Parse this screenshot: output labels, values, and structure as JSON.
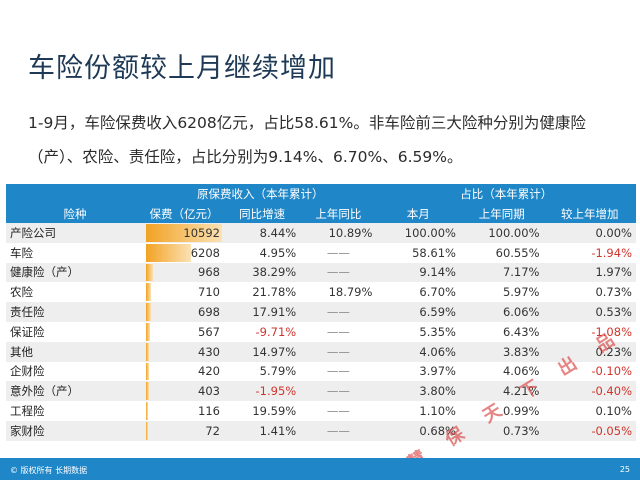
{
  "title": "车险份额较上月继续增加",
  "paragraph": "1-9月，车险保费收入6208亿元，占比58.61%。非车险前三大险种分别为健康险（产）、农险、责任险，占比分别为9.14%、6.70%、6.59%。",
  "table": {
    "group_headers": {
      "premium": "原保费收入（本年累计）",
      "share": "占比（本年累计）"
    },
    "columns": [
      "险种",
      "保费（亿元）",
      "同比增速",
      "上年同比",
      "本月",
      "上年同期",
      "较上年增加"
    ],
    "rows": [
      {
        "name": "产险公司",
        "premium": "10592",
        "premium_value": 10592,
        "yoy": "8.44%",
        "yoy_red": false,
        "prev_yoy": "10.89%",
        "month": "100.00%",
        "prev_period": "100.00%",
        "change": "0.00%",
        "change_red": false
      },
      {
        "name": "车险",
        "premium": "6208",
        "premium_value": 6208,
        "yoy": "4.95%",
        "yoy_red": false,
        "prev_yoy": "——",
        "month": "58.61%",
        "prev_period": "60.55%",
        "change": "-1.94%",
        "change_red": true
      },
      {
        "name": "健康险（产）",
        "premium": "968",
        "premium_value": 968,
        "yoy": "38.29%",
        "yoy_red": false,
        "prev_yoy": "——",
        "month": "9.14%",
        "prev_period": "7.17%",
        "change": "1.97%",
        "change_red": false
      },
      {
        "name": "农险",
        "premium": "710",
        "premium_value": 710,
        "yoy": "21.78%",
        "yoy_red": false,
        "prev_yoy": "18.79%",
        "month": "6.70%",
        "prev_period": "5.97%",
        "change": "0.73%",
        "change_red": false
      },
      {
        "name": "责任险",
        "premium": "698",
        "premium_value": 698,
        "yoy": "17.91%",
        "yoy_red": false,
        "prev_yoy": "——",
        "month": "6.59%",
        "prev_period": "6.06%",
        "change": "0.53%",
        "change_red": false
      },
      {
        "name": "保证险",
        "premium": "567",
        "premium_value": 567,
        "yoy": "-9.71%",
        "yoy_red": true,
        "prev_yoy": "——",
        "month": "5.35%",
        "prev_period": "6.43%",
        "change": "-1.08%",
        "change_red": true
      },
      {
        "name": "其他",
        "premium": "430",
        "premium_value": 430,
        "yoy": "14.97%",
        "yoy_red": false,
        "prev_yoy": "——",
        "month": "4.06%",
        "prev_period": "3.83%",
        "change": "0.23%",
        "change_red": false
      },
      {
        "name": "企财险",
        "premium": "420",
        "premium_value": 420,
        "yoy": "5.79%",
        "yoy_red": false,
        "prev_yoy": "——",
        "month": "3.97%",
        "prev_period": "4.06%",
        "change": "-0.10%",
        "change_red": true
      },
      {
        "name": "意外险（产）",
        "premium": "403",
        "premium_value": 403,
        "yoy": "-1.95%",
        "yoy_red": true,
        "prev_yoy": "——",
        "month": "3.80%",
        "prev_period": "4.21%",
        "change": "-0.40%",
        "change_red": true
      },
      {
        "name": "工程险",
        "premium": "116",
        "premium_value": 116,
        "yoy": "19.59%",
        "yoy_red": false,
        "prev_yoy": "——",
        "month": "1.10%",
        "prev_period": "0.99%",
        "change": "0.10%",
        "change_red": false
      },
      {
        "name": "家财险",
        "premium": "72",
        "premium_value": 72,
        "yoy": "1.41%",
        "yoy_red": false,
        "prev_yoy": "——",
        "month": "0.68%",
        "prev_period": "0.73%",
        "change": "-0.05%",
        "change_red": true
      }
    ]
  },
  "colors": {
    "header_blue": "#1f86c8",
    "bar_orange": "#f2a224",
    "negative_red": "#d0342c"
  },
  "footer": {
    "copyright": "© 版权所有 长期数据",
    "page": "25"
  },
  "watermark": "慧 保 天 下 出 品"
}
